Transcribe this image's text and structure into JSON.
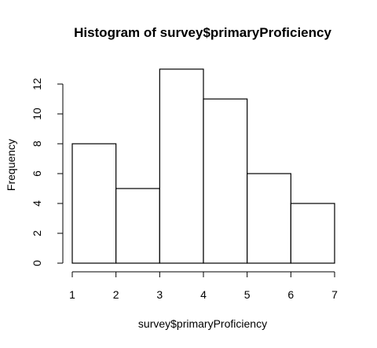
{
  "chart_data": {
    "type": "bar",
    "title": "Histogram of survey$primaryProficiency",
    "xlabel": "survey$primaryProficiency",
    "ylabel": "Frequency",
    "bins": [
      {
        "from": 1,
        "to": 2,
        "count": 8
      },
      {
        "from": 2,
        "to": 3,
        "count": 5
      },
      {
        "from": 3,
        "to": 4,
        "count": 13
      },
      {
        "from": 4,
        "to": 5,
        "count": 11
      },
      {
        "from": 5,
        "to": 6,
        "count": 6
      },
      {
        "from": 6,
        "to": 7,
        "count": 4
      }
    ],
    "x_ticks": [
      1,
      2,
      3,
      4,
      5,
      6,
      7
    ],
    "y_ticks": [
      0,
      2,
      4,
      6,
      8,
      10,
      12
    ],
    "xlim": [
      1,
      7
    ],
    "ylim": [
      0,
      13
    ],
    "grid": false,
    "bar_fill": "#ffffff",
    "bar_stroke": "#000000"
  }
}
